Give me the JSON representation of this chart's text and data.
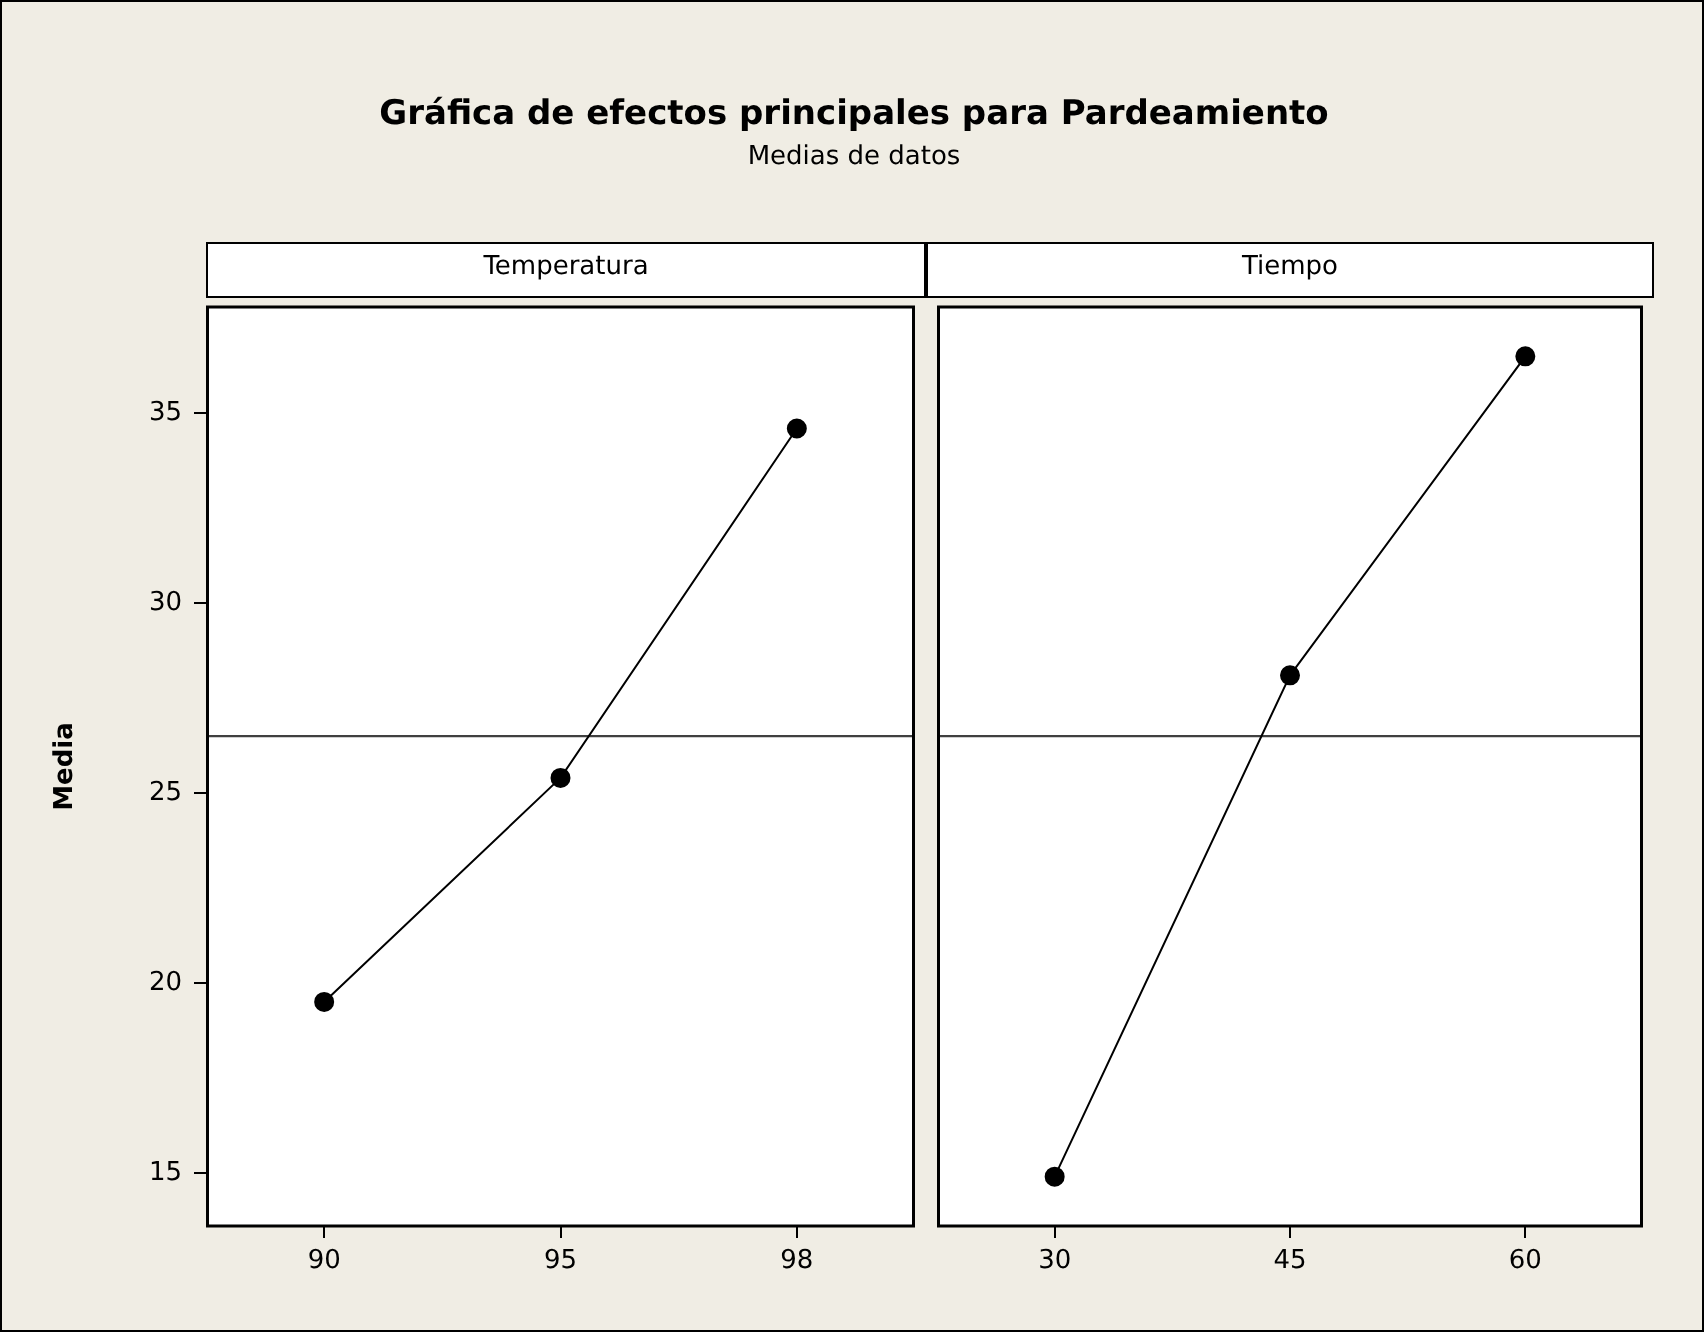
{
  "chart_data": [
    {
      "type": "line",
      "title": "Gráfica de efectos principales para Pardeamiento",
      "subtitle": "Medias de datos",
      "xlabel": "Temperatura",
      "ylabel": "Media",
      "categories": [
        "90",
        "95",
        "98"
      ],
      "series": [
        {
          "color": "#000000",
          "values": [
            19.5,
            25.4,
            34.6
          ]
        }
      ],
      "ylim": [
        13.6,
        37.8
      ],
      "yticks": [
        15,
        20,
        25,
        30,
        35
      ],
      "ref_lines": [
        {
          "axis": "y",
          "value": 26.5,
          "color": "#404040"
        }
      ],
      "grid": false,
      "legend": false,
      "marker": "circle",
      "line_style": "solid"
    },
    {
      "type": "line",
      "xlabel": "Tiempo",
      "categories": [
        "30",
        "45",
        "60"
      ],
      "series": [
        {
          "color": "#000000",
          "values": [
            14.9,
            28.1,
            36.5
          ]
        }
      ],
      "ylim": [
        13.6,
        37.8
      ],
      "yticks": [
        15,
        20,
        25,
        30,
        35
      ],
      "ref_lines": [
        {
          "axis": "y",
          "value": 26.5,
          "color": "#404040"
        }
      ],
      "grid": false,
      "legend": false,
      "marker": "circle",
      "line_style": "solid",
      "tick_labels": "x"
    }
  ]
}
